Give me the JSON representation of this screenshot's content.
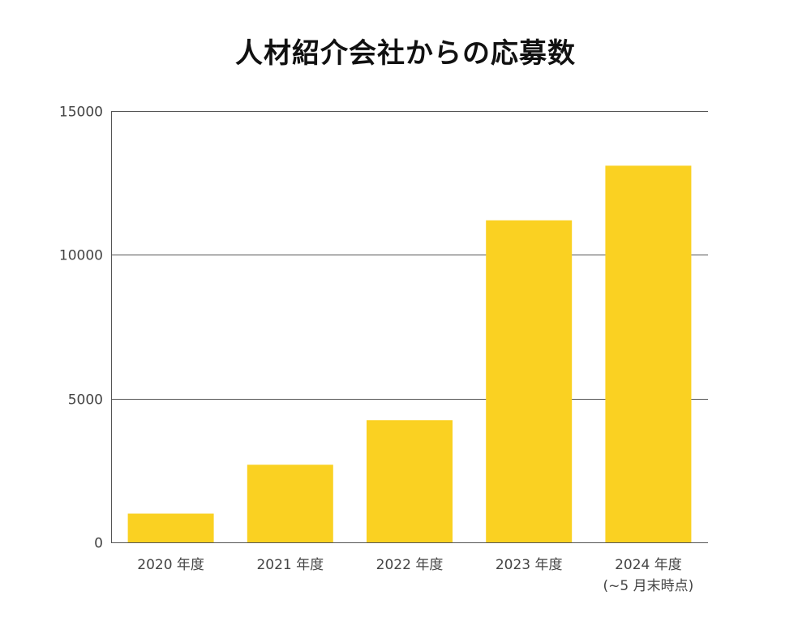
{
  "title": "人材紹介会社からの応募数",
  "colors": {
    "bar": "#FAD122",
    "grid": "#555555",
    "axis": "#555555",
    "text": "#444444"
  },
  "chart_data": {
    "type": "bar",
    "title": "人材紹介会社からの応募数",
    "xlabel": "",
    "ylabel": "",
    "categories": [
      [
        "2020 年度"
      ],
      [
        "2021 年度"
      ],
      [
        "2022 年度"
      ],
      [
        "2023 年度"
      ],
      [
        "2024 年度",
        "(~5 月末時点)"
      ]
    ],
    "values": [
      1000,
      2700,
      4250,
      11200,
      13100
    ],
    "ylim": [
      0,
      15000
    ],
    "yticks": [
      0,
      5000,
      10000,
      15000
    ],
    "grid": true,
    "legend": "none"
  }
}
